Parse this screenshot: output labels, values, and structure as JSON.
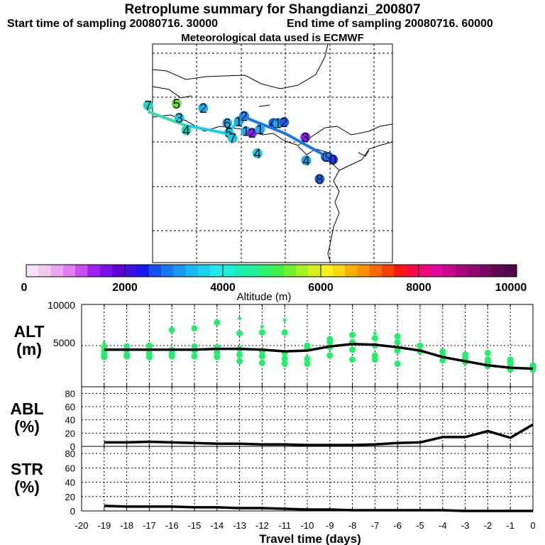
{
  "header": {
    "title": "Retroplume summary for Shangdianzi_200807",
    "start": "Start time of sampling 20080716. 30000",
    "end": "End time of sampling 20080716. 60000",
    "met": "Meteorological data used is ECMWF"
  },
  "map": {
    "markers": [
      {
        "label": "7",
        "color": "#18d8c8",
        "lon": -0.5,
        "lat": 17.7
      },
      {
        "label": "5",
        "color": "#70e040",
        "lon": 2.7,
        "lat": 17.9
      },
      {
        "label": "2",
        "color": "#18b0f0",
        "lon": 5.7,
        "lat": 17.4
      },
      {
        "label": "3",
        "color": "#18c8e8",
        "lon": 3.0,
        "lat": 16.3
      },
      {
        "label": "4",
        "color": "#18d8c8",
        "lon": 3.8,
        "lat": 14.9
      },
      {
        "label": "6",
        "color": "#18b0f0",
        "lon": 8.4,
        "lat": 15.7
      },
      {
        "label": "5",
        "color": "#18c8e8",
        "lon": 8.6,
        "lat": 14.6
      },
      {
        "label": "7",
        "color": "#18c8e8",
        "lon": 9.0,
        "lat": 14.0
      },
      {
        "label": "1",
        "color": "#18b0f0",
        "lon": 9.7,
        "lat": 15.9
      },
      {
        "label": "2",
        "color": "#1888f0",
        "lon": 10.3,
        "lat": 16.5
      },
      {
        "label": "1",
        "color": "#18b0f0",
        "lon": 10.5,
        "lat": 14.8
      },
      {
        "label": "2",
        "color": "#8020f0",
        "lon": 11.2,
        "lat": 14.6
      },
      {
        "label": "1",
        "color": "#18b0f0",
        "lon": 12.1,
        "lat": 15.0
      },
      {
        "label": "4",
        "color": "#1860f0",
        "lon": 13.6,
        "lat": 15.7
      },
      {
        "label": "1",
        "color": "#18a8f0",
        "lon": 14.1,
        "lat": 15.7
      },
      {
        "label": "2",
        "color": "#1860f0",
        "lon": 14.8,
        "lat": 15.8
      },
      {
        "label": "4",
        "color": "#18c8e8",
        "lon": 11.8,
        "lat": 12.3
      },
      {
        "label": "3",
        "color": "#8020f0",
        "lon": 17.2,
        "lat": 14.1
      },
      {
        "label": "4",
        "color": "#18a8f0",
        "lon": 17.3,
        "lat": 11.5
      },
      {
        "label": "6",
        "color": "#1860f0",
        "lon": 19.5,
        "lat": 11.9
      },
      {
        "label": "9",
        "color": "#1888f0",
        "lon": 19.8,
        "lat": 11.9
      },
      {
        "label": "0",
        "color": "#1838f0",
        "lon": 20.3,
        "lat": 11.6
      },
      {
        "label": "8",
        "color": "#1860f0",
        "lon": 18.8,
        "lat": 9.4
      }
    ],
    "path_green": [
      [
        -0.5,
        17.0
      ],
      [
        3.5,
        15.5
      ]
    ],
    "path_cyan": [
      [
        3.5,
        15.5
      ],
      [
        8.5,
        14.5
      ],
      [
        10.0,
        16.5
      ]
    ],
    "path_blue": [
      [
        10.0,
        16.5
      ],
      [
        15.0,
        14.5
      ],
      [
        19.5,
        12.0
      ]
    ]
  },
  "colorbar": {
    "ticks": [
      "0",
      "2000",
      "4000",
      "6000",
      "8000",
      "10000"
    ],
    "label": "Altitude (m)"
  },
  "panels": {
    "alt": {
      "line1": "ALT",
      "line2": "(m)"
    },
    "abl": {
      "line1": "ABL",
      "line2": "(%)"
    },
    "str": {
      "line1": "STR",
      "line2": "(%)"
    },
    "xlabel": "Travel time (days)"
  },
  "chart_data": [
    {
      "type": "line",
      "name": "ALT",
      "ylabel": "ALT (m)",
      "xlabel": "Travel time (days)",
      "xlim": [
        -20,
        0
      ],
      "ylim": [
        0,
        10000
      ],
      "yticks": [
        5000,
        10000
      ],
      "x": [
        -19,
        -18,
        -17,
        -16,
        -15,
        -14,
        -13,
        -12,
        -11,
        -10,
        -9,
        -8,
        -7,
        -6,
        -5,
        -4,
        -3,
        -2,
        -1,
        0
      ],
      "mean": [
        4500,
        4500,
        4500,
        4500,
        4500,
        4600,
        4600,
        4500,
        4300,
        4400,
        4900,
        5200,
        5100,
        4800,
        4400,
        3600,
        3100,
        2600,
        2300,
        2200
      ],
      "points": [
        {
          "x": -19,
          "y": [
            5300,
            4800,
            4300,
            3900,
            3600
          ]
        },
        {
          "x": -18,
          "y": [
            4900,
            4500,
            3900,
            3700
          ]
        },
        {
          "x": -17,
          "y": [
            5000,
            4600,
            4000,
            3600
          ]
        },
        {
          "x": -16,
          "y": [
            6900,
            4500,
            4000,
            3700
          ]
        },
        {
          "x": -15,
          "y": [
            7100,
            4900,
            4400,
            3700
          ]
        },
        {
          "x": -14,
          "y": [
            7800,
            4800,
            4200,
            3600
          ]
        },
        {
          "x": -13,
          "y": [
            8300,
            6500,
            4600,
            3900,
            3100
          ]
        },
        {
          "x": -12,
          "y": [
            7300,
            6600,
            4300,
            3700,
            2900
          ]
        },
        {
          "x": -11,
          "y": [
            8100,
            6600,
            4100,
            3400,
            2800
          ]
        },
        {
          "x": -10,
          "y": [
            5000,
            4700,
            3400,
            2800
          ]
        },
        {
          "x": -9,
          "y": [
            5800,
            5400,
            4800,
            3800
          ]
        },
        {
          "x": -8,
          "y": [
            6300,
            5400,
            4500,
            3300
          ]
        },
        {
          "x": -7,
          "y": [
            6500,
            5900,
            5000,
            3800,
            3300
          ]
        },
        {
          "x": -6,
          "y": [
            6100,
            5400,
            4400,
            2800
          ]
        },
        {
          "x": -5,
          "y": [
            5000,
            4300
          ]
        },
        {
          "x": -4,
          "y": [
            4300,
            3800,
            3200
          ]
        },
        {
          "x": -3,
          "y": [
            3900,
            3400,
            3000
          ]
        },
        {
          "x": -2,
          "y": [
            4100,
            3300,
            2900,
            2500
          ]
        },
        {
          "x": -1,
          "y": [
            3300,
            2900,
            2500,
            2100
          ]
        },
        {
          "x": 0,
          "y": [
            2600,
            2400,
            2100
          ]
        }
      ]
    },
    {
      "type": "line",
      "name": "ABL",
      "ylabel": "ABL (%)",
      "xlim": [
        -20,
        0
      ],
      "ylim": [
        0,
        90
      ],
      "yticks": [
        0,
        20,
        40,
        60,
        80
      ],
      "x": [
        -19,
        -18,
        -17,
        -16,
        -15,
        -14,
        -13,
        -12,
        -11,
        -10,
        -9,
        -8,
        -7,
        -6,
        -5,
        -4,
        -3,
        -2,
        -1,
        0
      ],
      "values": [
        6,
        6,
        7,
        6,
        5,
        4,
        4,
        3,
        3,
        2,
        2,
        2,
        3,
        5,
        6,
        14,
        14,
        23,
        13,
        33
      ]
    },
    {
      "type": "line",
      "name": "STR",
      "ylabel": "STR (%)",
      "xlim": [
        -20,
        0
      ],
      "ylim": [
        0,
        90
      ],
      "yticks": [
        0,
        20,
        40,
        60,
        80
      ],
      "x": [
        -19,
        -18,
        -17,
        -16,
        -15,
        -14,
        -13,
        -12,
        -11,
        -10,
        -9,
        -8,
        -7,
        -6,
        -5,
        -4,
        -3,
        -2,
        -1,
        0
      ],
      "values": [
        7,
        6,
        6,
        6,
        5,
        5,
        4,
        4,
        3,
        2,
        2,
        1,
        1,
        1,
        1,
        1,
        0,
        0,
        0,
        0
      ]
    }
  ],
  "x_ticks": [
    "-20",
    "-19",
    "-18",
    "-17",
    "-16",
    "-15",
    "-14",
    "-13",
    "-12",
    "-11",
    "-10",
    "-9",
    "-8",
    "-7",
    "-6",
    "-5",
    "-4",
    "-3",
    "-2",
    "-1",
    "0"
  ]
}
